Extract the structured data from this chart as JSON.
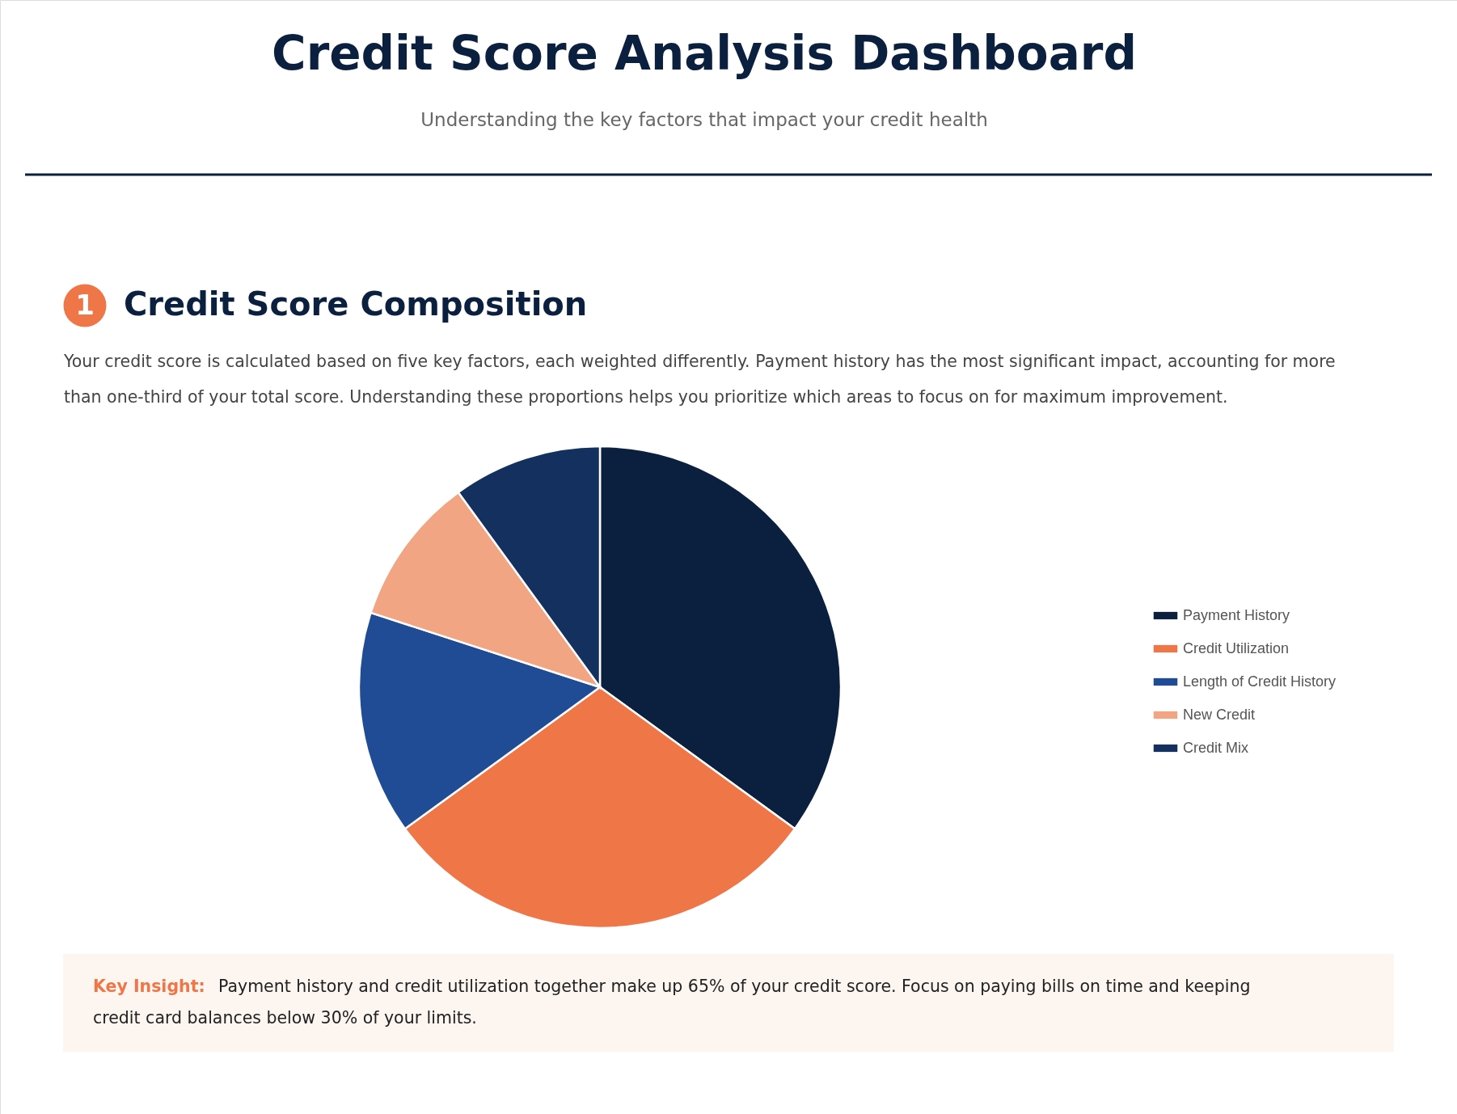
{
  "chart_data": {
    "type": "pie",
    "title": "Credit Score Analysis Dashboard",
    "subtitle": "Understanding the key factors that impact your credit health",
    "categories": [
      "Payment History",
      "Credit Utilization",
      "Length of Credit History",
      "New Credit",
      "Credit Mix"
    ],
    "values": [
      35,
      30,
      15,
      10,
      10
    ],
    "colors": [
      "#0b1f3f",
      "#ee7647",
      "#1f4c94",
      "#f2a582",
      "#13305f"
    ],
    "legend": "right",
    "annotations": [
      "1",
      "Credit Score Composition",
      "Your credit score is calculated based on five key factors, each weighted differently. Payment history has the most significant impact, accounting for more than one-third of your total score. Understanding these proportions helps you prioritize which areas to focus on for maximum improvement.",
      "Key Insight:",
      "Payment history and credit utilization together make up 65% of your credit score. Focus on paying bills on time and keeping credit card balances below 30% of your limits."
    ]
  }
}
